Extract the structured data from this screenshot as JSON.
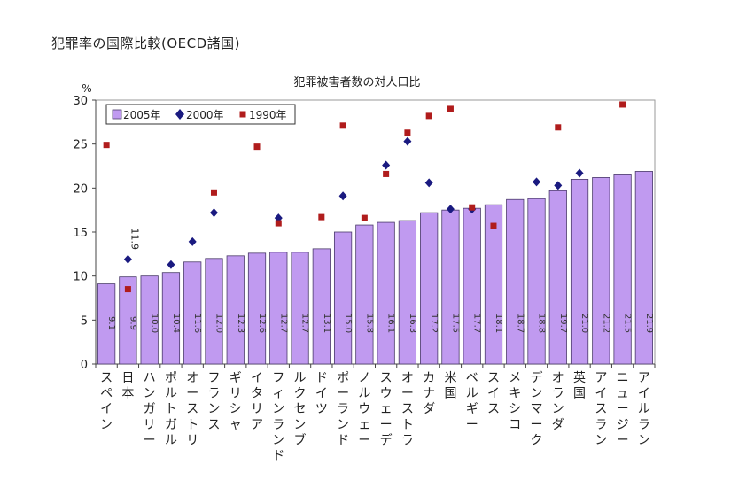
{
  "page": {
    "title": "犯罪率の国際比較(OECD諸国)"
  },
  "chart_data": {
    "type": "bar",
    "title": "犯罪被害者数の対人口比",
    "ylabel": "%",
    "ylim": [
      0,
      30
    ],
    "yticks": [
      0,
      5,
      10,
      15,
      20,
      25,
      30
    ],
    "grid": false,
    "legend_position": "top-left",
    "categories": [
      "スペイン",
      "日本",
      "ハンガリー",
      "ポルトガル",
      "オーストリ",
      "フランス",
      "ギリシャ",
      "イタリア",
      "フィンランド",
      "ルクセンブ",
      "ドイツ",
      "ポーランド",
      "ノルウェー",
      "スウェーデ",
      "オーストラ",
      "カナダ",
      "米国",
      "ベルギー",
      "スイス",
      "メキシコ",
      "デンマーク",
      "オランダ",
      "英国",
      "アイスラン",
      "ニュージー",
      "アイルラン"
    ],
    "series": [
      {
        "name": "2005年",
        "kind": "bar",
        "color": "#c09af0",
        "values": [
          9.1,
          9.9,
          10.0,
          10.4,
          11.6,
          12.0,
          12.3,
          12.6,
          12.7,
          12.7,
          13.1,
          15.0,
          15.8,
          16.1,
          16.3,
          17.2,
          17.5,
          17.7,
          18.1,
          18.7,
          18.8,
          19.7,
          21.0,
          21.2,
          21.5,
          21.9
        ],
        "labels": [
          "9.1",
          "9.9",
          "10.0",
          "10.4",
          "11.6",
          "12.0",
          "12.3",
          "12.6",
          "12.7",
          "12.7",
          "13.1",
          "15.0",
          "15.8",
          "16.1",
          "16.3",
          "17.2",
          "17.5",
          "17.7",
          "18.1",
          "18.7",
          "18.8",
          "19.7",
          "21.0",
          "21.2",
          "21.5",
          "21.9"
        ]
      },
      {
        "name": "2000年",
        "kind": "marker",
        "marker": "diamond",
        "color": "#1a1a80",
        "values": [
          null,
          11.9,
          null,
          11.3,
          13.9,
          17.2,
          null,
          null,
          16.6,
          null,
          null,
          19.1,
          null,
          22.6,
          25.3,
          20.6,
          17.6,
          17.6,
          null,
          null,
          20.7,
          20.3,
          21.7,
          null,
          null,
          null
        ]
      },
      {
        "name": "1990年",
        "kind": "marker",
        "marker": "square",
        "color": "#b01c1c",
        "values": [
          24.9,
          8.5,
          null,
          null,
          null,
          19.5,
          null,
          24.7,
          16.0,
          null,
          16.7,
          27.1,
          16.6,
          21.6,
          26.3,
          28.2,
          29.0,
          17.8,
          15.7,
          null,
          null,
          26.9,
          null,
          null,
          29.5,
          null
        ]
      }
    ],
    "annotations": [
      {
        "category": "日本",
        "text": "11.9"
      }
    ]
  }
}
